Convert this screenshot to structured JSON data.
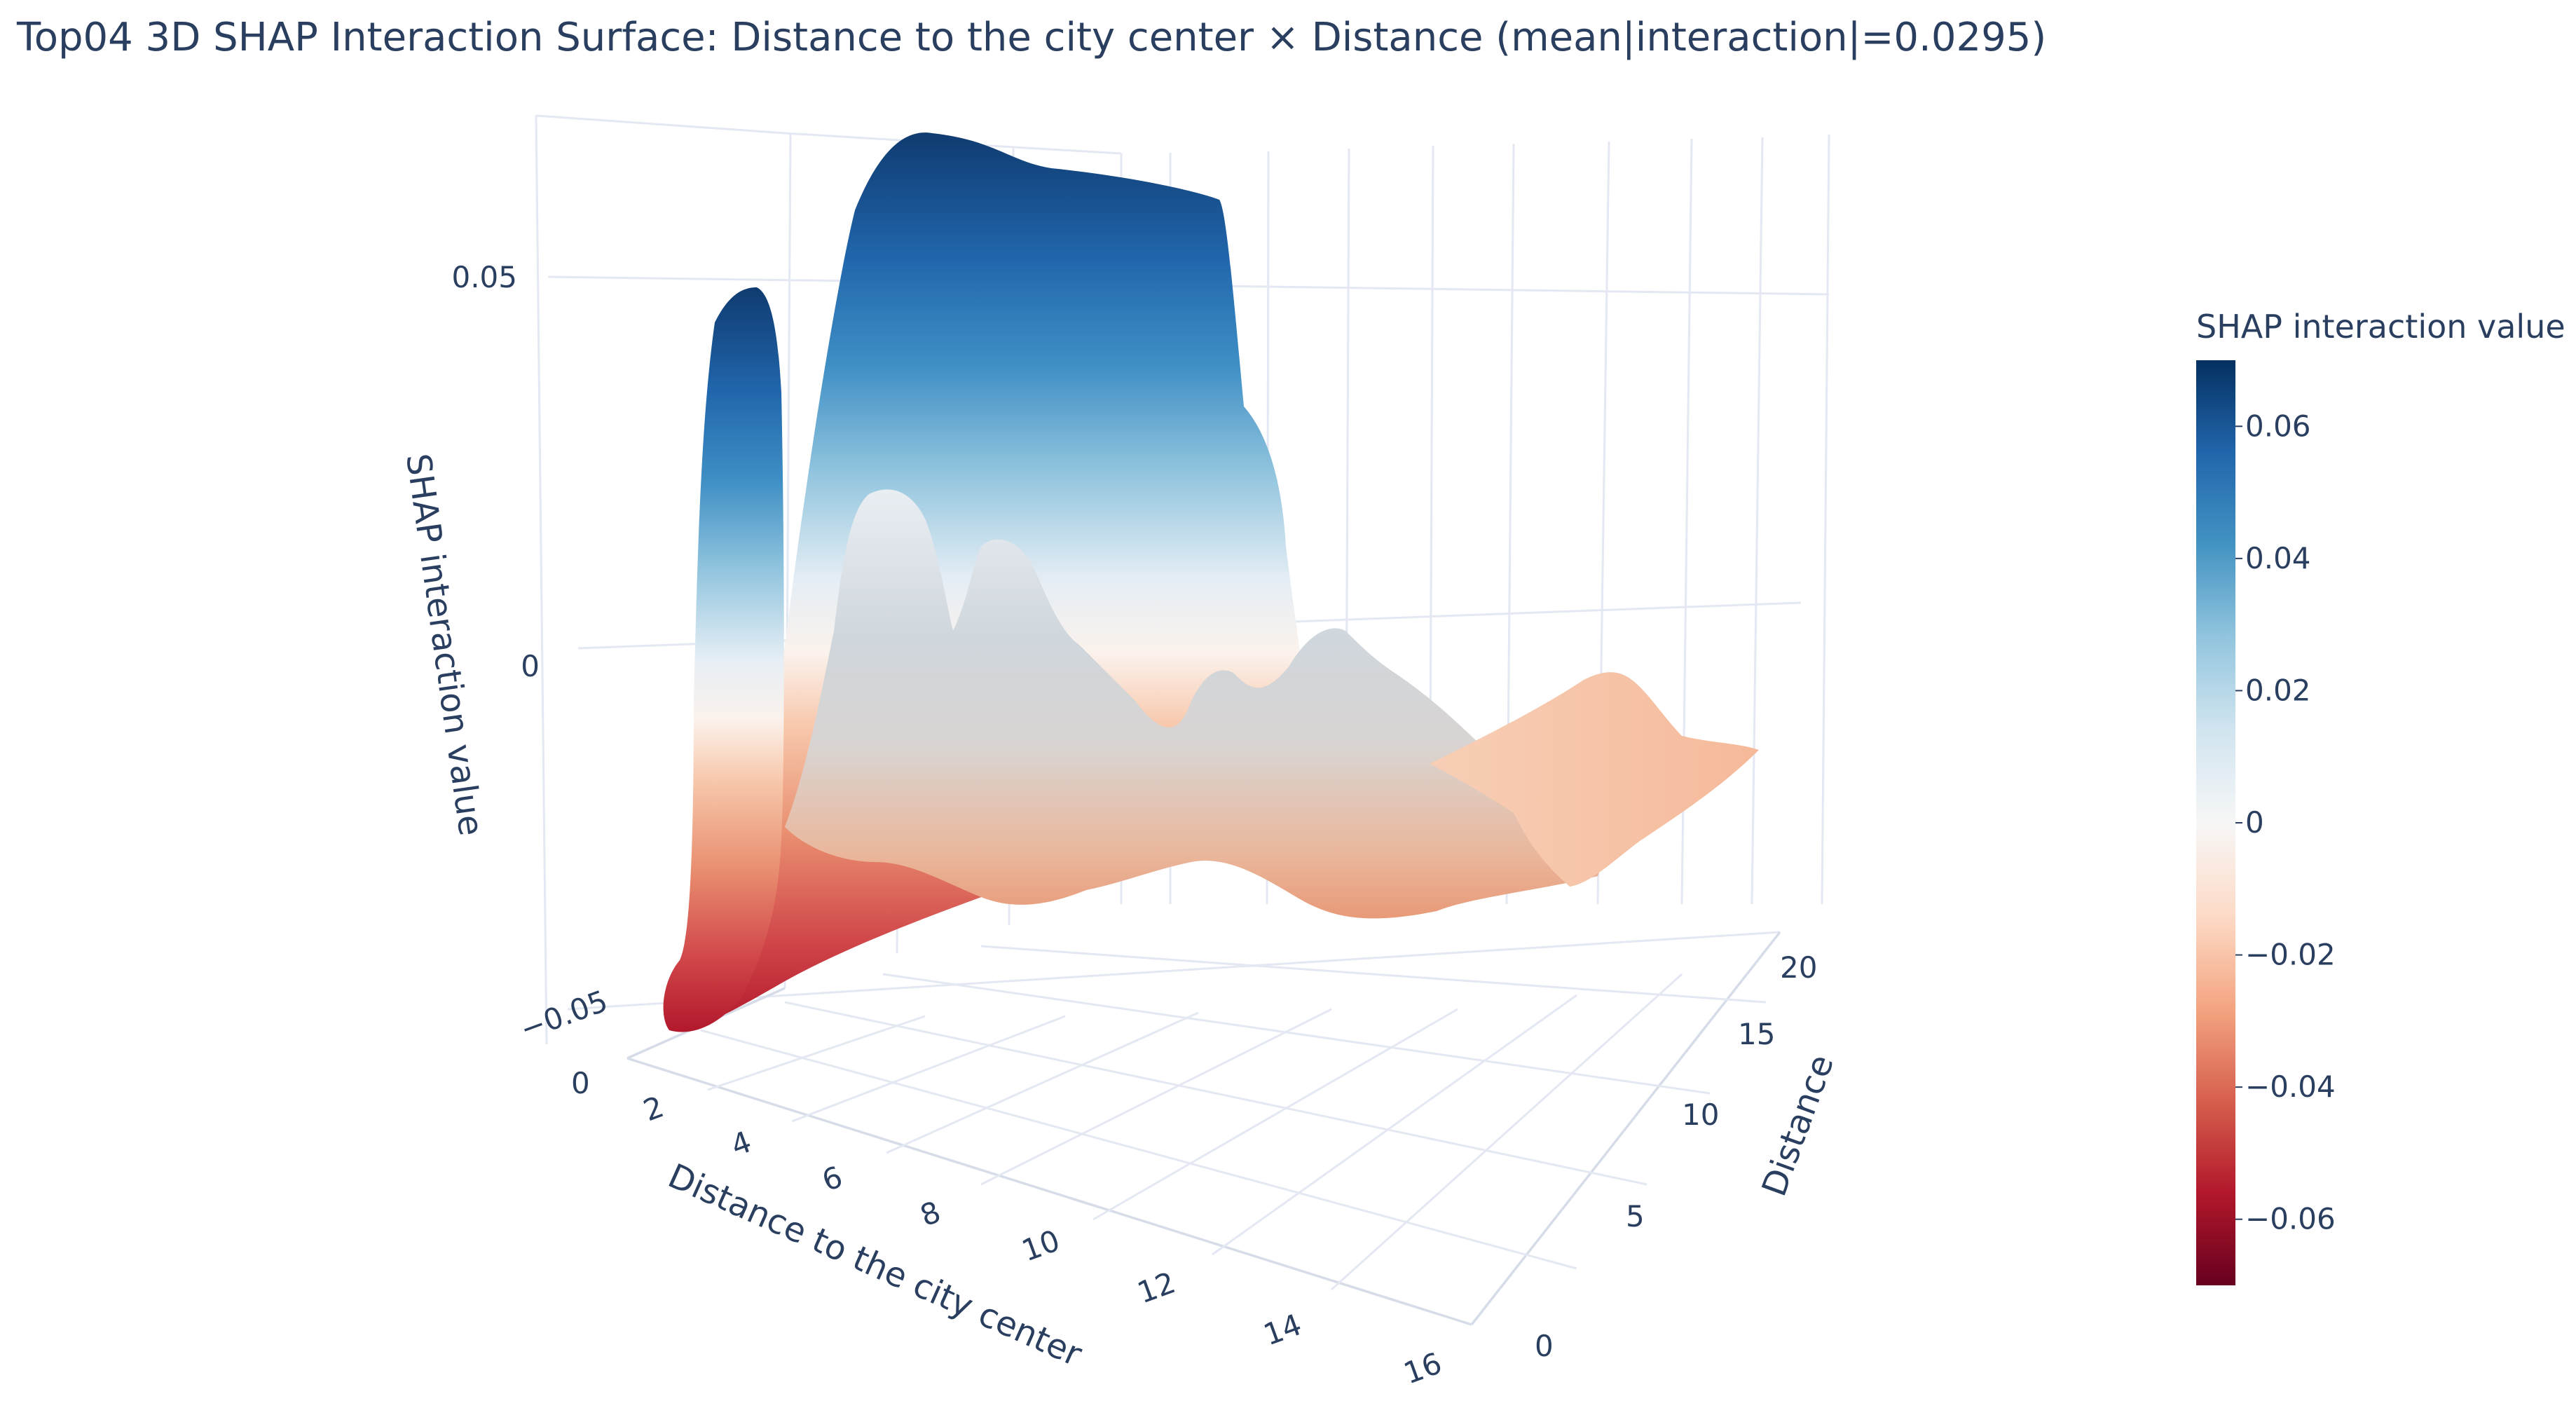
{
  "chart_data": {
    "type": "surface",
    "title": "Top04 3D SHAP Interaction Surface: Distance to the city center × Distance (mean|interaction|=0.0295)",
    "x_axis": {
      "label": "Distance to the city center",
      "ticks": [
        "0",
        "2",
        "4",
        "6",
        "8",
        "10",
        "12",
        "14",
        "16"
      ],
      "range": [
        0,
        16
      ]
    },
    "y_axis": {
      "label": "Distance",
      "ticks": [
        "0",
        "5",
        "10",
        "15",
        "20"
      ],
      "range": [
        0,
        22
      ]
    },
    "z_axis": {
      "label": "SHAP interaction value",
      "ticks": [
        "−0.05",
        "0",
        "0.05"
      ],
      "range": [
        -0.07,
        0.07
      ]
    },
    "colorbar": {
      "title": "SHAP interaction value",
      "ticks": [
        "0.06",
        "0.04",
        "0.02",
        "0",
        "−0.02",
        "−0.04",
        "−0.06"
      ],
      "tick_values": [
        0.06,
        0.04,
        0.02,
        0,
        -0.02,
        -0.04,
        -0.06
      ],
      "range": [
        -0.07,
        0.07
      ],
      "colorscale": "RdBu",
      "colors": [
        "#67001f",
        "#b2182b",
        "#d6604d",
        "#f4a582",
        "#fddbc7",
        "#f7f7f7",
        "#d1e5f0",
        "#92c5de",
        "#4393c3",
        "#2166ac",
        "#053061"
      ]
    },
    "series": [
      {
        "x": [
          1.3,
          2.0,
          2.8,
          3.8,
          4.8,
          5.8,
          6.8,
          7.8,
          8.8,
          9.8,
          10.8,
          11.8,
          12.8,
          13.8,
          14.8
        ],
        "z": [
          -0.058,
          0.052,
          0.052,
          0.062,
          0.055,
          0.02,
          0.018,
          0.01,
          0.006,
          0.003,
          -0.006,
          -0.012,
          -0.012,
          -0.011,
          -0.012
        ]
      },
      {
        "x": [
          1.3,
          2.5,
          3.8,
          4.5,
          5.5,
          6.5,
          7.5,
          8.5,
          9.5,
          10.5,
          11.5,
          12.5,
          13.5,
          14.5,
          15.5
        ],
        "z": [
          -0.06,
          -0.02,
          0.02,
          -0.015,
          0.018,
          -0.025,
          0.0,
          -0.012,
          0.008,
          -0.03,
          -0.01,
          -0.022,
          -0.018,
          -0.02,
          -0.019
        ]
      }
    ]
  }
}
